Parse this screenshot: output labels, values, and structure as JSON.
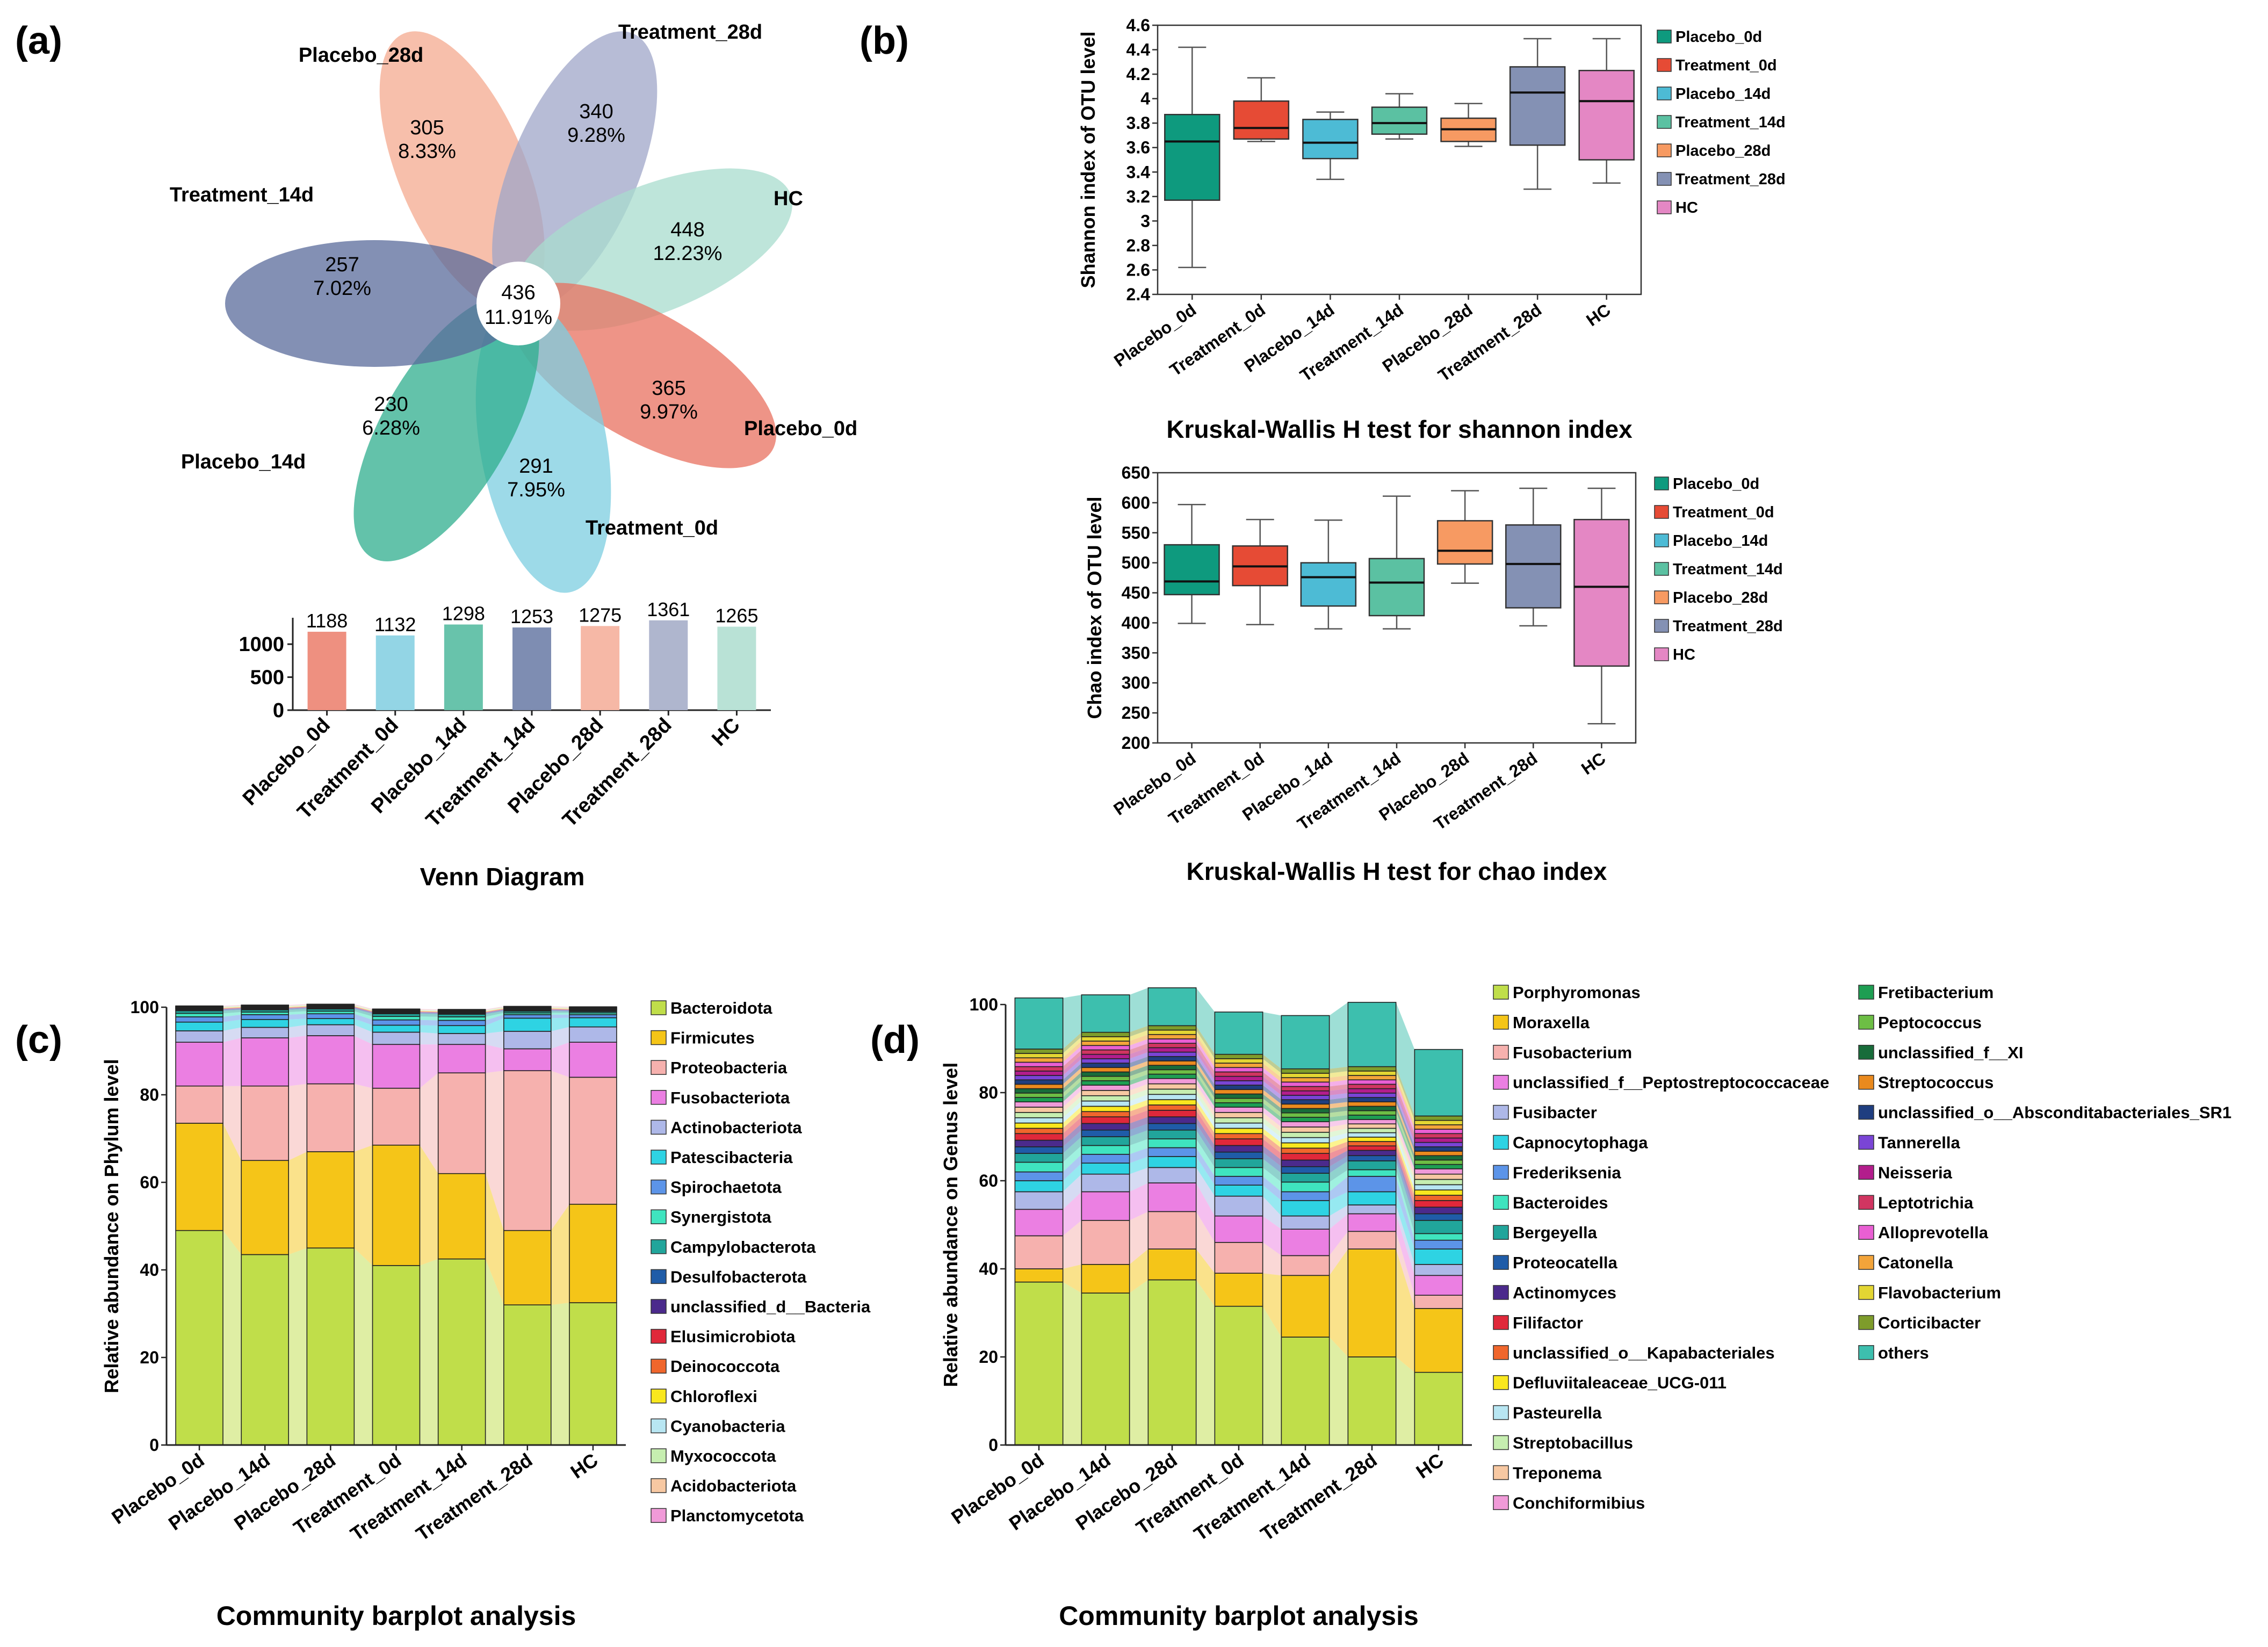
{
  "panel_labels": {
    "a": "(a)",
    "b": "(b)",
    "c": "(c)",
    "d": "(d)"
  },
  "venn": {
    "title": "Venn Diagram",
    "center": {
      "count": "436",
      "pct": "11.91%"
    },
    "petals": [
      {
        "group": "Placebo_28d",
        "count": "305",
        "pct": "8.33%",
        "color": "#F4A98F"
      },
      {
        "group": "Treatment_28d",
        "count": "340",
        "pct": "9.28%",
        "color": "#9FA6C8"
      },
      {
        "group": "HC",
        "count": "448",
        "pct": "12.23%",
        "color": "#A8DCCE"
      },
      {
        "group": "Placebo_0d",
        "count": "365",
        "pct": "9.97%",
        "color": "#E8705F"
      },
      {
        "group": "Treatment_0d",
        "count": "291",
        "pct": "7.95%",
        "color": "#7CCDE0"
      },
      {
        "group": "Placebo_14d",
        "count": "230",
        "pct": "6.28%",
        "color": "#2FAE8E"
      },
      {
        "group": "Treatment_14d",
        "count": "257",
        "pct": "7.02%",
        "color": "#5A6B9B"
      }
    ],
    "totals": {
      "categories": [
        "Placebo_0d",
        "Treatment_0d",
        "Placebo_14d",
        "Treatment_14d",
        "Placebo_28d",
        "Treatment_28d",
        "HC"
      ],
      "values": [
        1188,
        1132,
        1298,
        1253,
        1275,
        1361,
        1265
      ],
      "colors": [
        "#EE9080",
        "#93D5E5",
        "#68C3AB",
        "#7E8DB2",
        "#F6B8A6",
        "#AFB6CE",
        "#B9E2D6"
      ],
      "yticks": [
        "0",
        "500",
        "1000"
      ],
      "ylim": [
        0,
        1400
      ]
    }
  },
  "chart_data": [
    {
      "type": "box",
      "id": "shannon",
      "title": "Kruskal-Wallis H test for shannon index",
      "ylabel": "Shannon index of OTU level",
      "ylim": [
        2.4,
        4.6
      ],
      "yticks": [
        "2.4",
        "2.6",
        "2.8",
        "3",
        "3.2",
        "3.4",
        "3.6",
        "3.8",
        "4",
        "4.2",
        "4.4",
        "4.6"
      ],
      "categories": [
        "Placebo_0d",
        "Treatment_0d",
        "Placebo_14d",
        "Treatment_14d",
        "Placebo_28d",
        "Treatment_28d",
        "HC"
      ],
      "colors": [
        "#0E9A7E",
        "#E64B35",
        "#4DBBD5",
        "#5BC1A2",
        "#F79A62",
        "#8491B4",
        "#E487C4"
      ],
      "boxes": [
        {
          "min": 2.62,
          "q1": 3.17,
          "median": 3.65,
          "q3": 3.87,
          "max": 4.42
        },
        {
          "min": 3.65,
          "q1": 3.67,
          "median": 3.76,
          "q3": 3.98,
          "max": 4.17
        },
        {
          "min": 3.34,
          "q1": 3.51,
          "median": 3.64,
          "q3": 3.83,
          "max": 3.89
        },
        {
          "min": 3.67,
          "q1": 3.71,
          "median": 3.8,
          "q3": 3.93,
          "max": 4.04
        },
        {
          "min": 3.61,
          "q1": 3.65,
          "median": 3.75,
          "q3": 3.84,
          "max": 3.96
        },
        {
          "min": 3.26,
          "q1": 3.62,
          "median": 4.05,
          "q3": 4.26,
          "max": 4.49
        },
        {
          "min": 3.31,
          "q1": 3.5,
          "median": 3.98,
          "q3": 4.23,
          "max": 4.49
        }
      ]
    },
    {
      "type": "box",
      "id": "chao",
      "title": "Kruskal-Wallis H test for chao index",
      "ylabel": "Chao index of OTU level",
      "ylim": [
        200,
        650
      ],
      "yticks": [
        "200",
        "250",
        "300",
        "350",
        "400",
        "450",
        "500",
        "550",
        "600",
        "650"
      ],
      "categories": [
        "Placebo_0d",
        "Treatment_0d",
        "Placebo_14d",
        "Treatment_14d",
        "Placebo_28d",
        "Treatment_28d",
        "HC"
      ],
      "colors": [
        "#0E9A7E",
        "#E64B35",
        "#4DBBD5",
        "#5BC1A2",
        "#F79A62",
        "#8491B4",
        "#E487C4"
      ],
      "boxes": [
        {
          "min": 399,
          "q1": 447,
          "median": 469,
          "q3": 530,
          "max": 597
        },
        {
          "min": 397,
          "q1": 462,
          "median": 494,
          "q3": 528,
          "max": 572
        },
        {
          "min": 390,
          "q1": 428,
          "median": 476,
          "q3": 500,
          "max": 571
        },
        {
          "min": 390,
          "q1": 412,
          "median": 467,
          "q3": 507,
          "max": 611
        },
        {
          "min": 466,
          "q1": 498,
          "median": 520,
          "q3": 570,
          "max": 620
        },
        {
          "min": 395,
          "q1": 425,
          "median": 498,
          "q3": 563,
          "max": 624
        },
        {
          "min": 232,
          "q1": 328,
          "median": 460,
          "q3": 572,
          "max": 624
        }
      ]
    },
    {
      "type": "stacked_bar",
      "id": "phylum",
      "title": "Community barplot analysis",
      "ylabel": "Relative abundance on Phylum level",
      "ylim": [
        0,
        100
      ],
      "yticks": [
        "0",
        "20",
        "40",
        "60",
        "80",
        "100"
      ],
      "categories": [
        "Placebo_0d",
        "Placebo_14d",
        "Placebo_28d",
        "Treatment_0d",
        "Treatment_14d",
        "Treatment_28d",
        "HC"
      ],
      "series": [
        {
          "name": "Bacteroidota",
          "color": "#C0DE4A",
          "values": [
            49,
            43.5,
            45,
            41,
            42.5,
            32,
            32.5
          ]
        },
        {
          "name": "Firmicutes",
          "color": "#F5C518",
          "values": [
            24.5,
            21.5,
            22,
            27.5,
            19.5,
            17,
            22.5
          ]
        },
        {
          "name": "Proteobacteria",
          "color": "#F6B1AE",
          "values": [
            8.5,
            17,
            15.5,
            13,
            23,
            36.5,
            29
          ]
        },
        {
          "name": "Fusobacteriota",
          "color": "#EB7FE2",
          "values": [
            10,
            11,
            11,
            10,
            6.5,
            5,
            8
          ]
        },
        {
          "name": "Actinobacteriota",
          "color": "#AEB8E8",
          "values": [
            2.6,
            2.4,
            2.5,
            2.8,
            2.5,
            4,
            3.5
          ]
        },
        {
          "name": "Patescibacteria",
          "color": "#2ED3E3",
          "values": [
            2,
            1.8,
            1.4,
            1.6,
            1.8,
            3,
            2.1
          ]
        },
        {
          "name": "Spirochaetota",
          "color": "#5C94E8",
          "values": [
            1.2,
            1.1,
            1.1,
            1.2,
            1.2,
            0.8,
            0.7
          ]
        },
        {
          "name": "Synergistota",
          "color": "#3FE4BF",
          "values": [
            0.8,
            0.6,
            0.6,
            0.8,
            0.8,
            0.4,
            0.4
          ]
        },
        {
          "name": "Campylobacterota",
          "color": "#21A59B",
          "values": [
            0.6,
            0.5,
            0.5,
            0.6,
            0.6,
            0.4,
            0.3
          ]
        },
        {
          "name": "Desulfobacterota",
          "color": "#1F5CA8",
          "values": [
            0.2,
            0.2,
            0.2,
            0.2,
            0.2,
            0.2,
            0.2
          ]
        },
        {
          "name": "unclassified_d__Bacteria",
          "color": "#4B2A8C",
          "values": [
            0.2,
            0.2,
            0.2,
            0.2,
            0.2,
            0.2,
            0.2
          ]
        },
        {
          "name": "Elusimicrobiota",
          "color": "#E0283A",
          "values": [
            0.1,
            0.1,
            0.1,
            0.1,
            0.1,
            0.1,
            0.1
          ]
        },
        {
          "name": "Deinococcota",
          "color": "#F0662C",
          "values": [
            0.1,
            0.1,
            0.1,
            0.1,
            0.1,
            0.1,
            0.1
          ]
        },
        {
          "name": "Chloroflexi",
          "color": "#F9E71E",
          "values": [
            0.1,
            0.1,
            0.1,
            0.1,
            0.1,
            0.1,
            0.1
          ]
        },
        {
          "name": "Cyanobacteria",
          "color": "#B8E6F2",
          "values": [
            0.1,
            0.1,
            0.1,
            0.1,
            0.1,
            0.1,
            0.1
          ]
        },
        {
          "name": "Myxococcota",
          "color": "#C6EEB0",
          "values": [
            0.1,
            0.1,
            0.1,
            0.1,
            0.1,
            0.1,
            0.1
          ]
        },
        {
          "name": "Acidobacteriota",
          "color": "#F7C8A2",
          "values": [
            0.1,
            0.1,
            0.1,
            0.1,
            0.1,
            0.1,
            0.1
          ]
        },
        {
          "name": "Planctomycetota",
          "color": "#F09AD8",
          "values": [
            0.1,
            0.1,
            0.1,
            0.1,
            0.1,
            0.1,
            0.1
          ]
        }
      ]
    },
    {
      "type": "stacked_bar",
      "id": "genus",
      "title": "Community barplot analysis",
      "ylabel": "Relative abundance on Genus level",
      "ylim": [
        0,
        100
      ],
      "yticks": [
        "0",
        "20",
        "40",
        "60",
        "80",
        "100"
      ],
      "categories": [
        "Placebo_0d",
        "Placebo_14d",
        "Placebo_28d",
        "Treatment_0d",
        "Treatment_14d",
        "Treatment_28d",
        "HC"
      ],
      "series": [
        {
          "name": "Porphyromonas",
          "color": "#C0DE4A",
          "values": [
            37,
            34.5,
            37.5,
            31.5,
            24.5,
            20,
            16.5
          ]
        },
        {
          "name": "Moraxella",
          "color": "#F5C518",
          "values": [
            3,
            6.5,
            7,
            7.5,
            14,
            24.5,
            14.5
          ]
        },
        {
          "name": "Fusobacterium",
          "color": "#F6B1AE",
          "values": [
            7.5,
            10,
            8.5,
            7,
            4.5,
            4,
            3
          ]
        },
        {
          "name": "unclassified_f__Peptostreptococcaceae",
          "color": "#EB7FE2",
          "values": [
            6,
            6.5,
            6.5,
            6,
            6,
            4,
            4.5
          ]
        },
        {
          "name": "Fusibacter",
          "color": "#AEB8E8",
          "values": [
            4,
            4,
            3.5,
            4.5,
            3,
            2,
            2.5
          ]
        },
        {
          "name": "Capnocytophaga",
          "color": "#2ED3E3",
          "values": [
            2.5,
            2.5,
            2.5,
            2.5,
            3.5,
            3,
            3.5
          ]
        },
        {
          "name": "Frederiksenia",
          "color": "#5C94E8",
          "values": [
            2,
            2,
            2,
            2,
            2,
            3.5,
            2
          ]
        },
        {
          "name": "Bacteroides",
          "color": "#3FE4BF",
          "values": [
            2.2,
            2,
            2,
            2,
            2.2,
            1.5,
            1.5
          ]
        },
        {
          "name": "Bergeyella",
          "color": "#21A59B",
          "values": [
            2,
            2,
            2,
            2,
            2,
            2,
            3
          ]
        },
        {
          "name": "Proteocatella",
          "color": "#1F5CA8",
          "values": [
            1.5,
            1.5,
            1.5,
            1.5,
            1.5,
            1.2,
            1.5
          ]
        },
        {
          "name": "Actinomyces",
          "color": "#4B2A8C",
          "values": [
            1.5,
            1.5,
            1.5,
            1.5,
            1.5,
            1.2,
            1.5
          ]
        },
        {
          "name": "Filifactor",
          "color": "#E0283A",
          "values": [
            1.5,
            1.5,
            1.5,
            1.5,
            1.5,
            1,
            1.5
          ]
        },
        {
          "name": "unclassified_o__Kapabacteriales",
          "color": "#F0662C",
          "values": [
            1.2,
            1.2,
            1.2,
            1.2,
            1.2,
            1,
            1.2
          ]
        },
        {
          "name": "Defluviitaleaceae_UCG-011",
          "color": "#F9E71E",
          "values": [
            1.2,
            1.2,
            1.2,
            1.2,
            1.2,
            1,
            1.2
          ]
        },
        {
          "name": "Pasteurella",
          "color": "#B8E6F2",
          "values": [
            1.2,
            1.2,
            1.2,
            1.2,
            1.2,
            1,
            1.2
          ]
        },
        {
          "name": "Streptobacillus",
          "color": "#C6EEB0",
          "values": [
            1.2,
            1.2,
            1.2,
            1.2,
            1.2,
            1,
            1.2
          ]
        },
        {
          "name": "Treponema",
          "color": "#F7C8A2",
          "values": [
            1.2,
            1.2,
            1.2,
            1.2,
            1.2,
            1,
            1.2
          ]
        },
        {
          "name": "Conchiformibius",
          "color": "#F09AD8",
          "values": [
            1.2,
            1.2,
            1.2,
            1.2,
            1.2,
            1,
            1.2
          ]
        },
        {
          "name": "Fretibacterium",
          "color": "#1E9E52",
          "values": [
            1,
            1,
            1,
            1,
            1,
            1,
            1
          ]
        },
        {
          "name": "Peptococcus",
          "color": "#6DBE45",
          "values": [
            1,
            1,
            1,
            1,
            1,
            1,
            1
          ]
        },
        {
          "name": "unclassified_f__XI",
          "color": "#186C3A",
          "values": [
            1,
            1,
            1,
            1,
            1,
            1,
            1
          ]
        },
        {
          "name": "Streptococcus",
          "color": "#EA8A1E",
          "values": [
            1,
            1,
            1,
            1,
            1,
            1,
            1
          ]
        },
        {
          "name": "unclassified_o__Absconditabacteriales_SR1",
          "color": "#1F3E80",
          "values": [
            1,
            1,
            1,
            1,
            1,
            1,
            1
          ]
        },
        {
          "name": "Tannerella",
          "color": "#7A45D6",
          "values": [
            1,
            1,
            1,
            1,
            1,
            1,
            1
          ]
        },
        {
          "name": "Neisseria",
          "color": "#B31D8C",
          "values": [
            1,
            1,
            1,
            1,
            1,
            1,
            1
          ]
        },
        {
          "name": "Leptotrichia",
          "color": "#D13561",
          "values": [
            1,
            1,
            1,
            1,
            1,
            1,
            1
          ]
        },
        {
          "name": "Alloprevotella",
          "color": "#E95FD3",
          "values": [
            1,
            1,
            1,
            1,
            1,
            1,
            1
          ]
        },
        {
          "name": "Catonella",
          "color": "#F3A43A",
          "values": [
            1,
            1,
            1,
            1,
            1,
            1,
            1
          ]
        },
        {
          "name": "Flavobacterium",
          "color": "#E3D633",
          "values": [
            1,
            1,
            1,
            1,
            1,
            1,
            1
          ]
        },
        {
          "name": "Corticibacter",
          "color": "#7E9C2B",
          "values": [
            1,
            1,
            1,
            1,
            1,
            1,
            1
          ]
        },
        {
          "name": "others",
          "color": "#3DBFAE",
          "values": [
            11.6,
            8.5,
            8.6,
            9.6,
            12.1,
            14.6,
            15.1
          ]
        }
      ]
    }
  ]
}
